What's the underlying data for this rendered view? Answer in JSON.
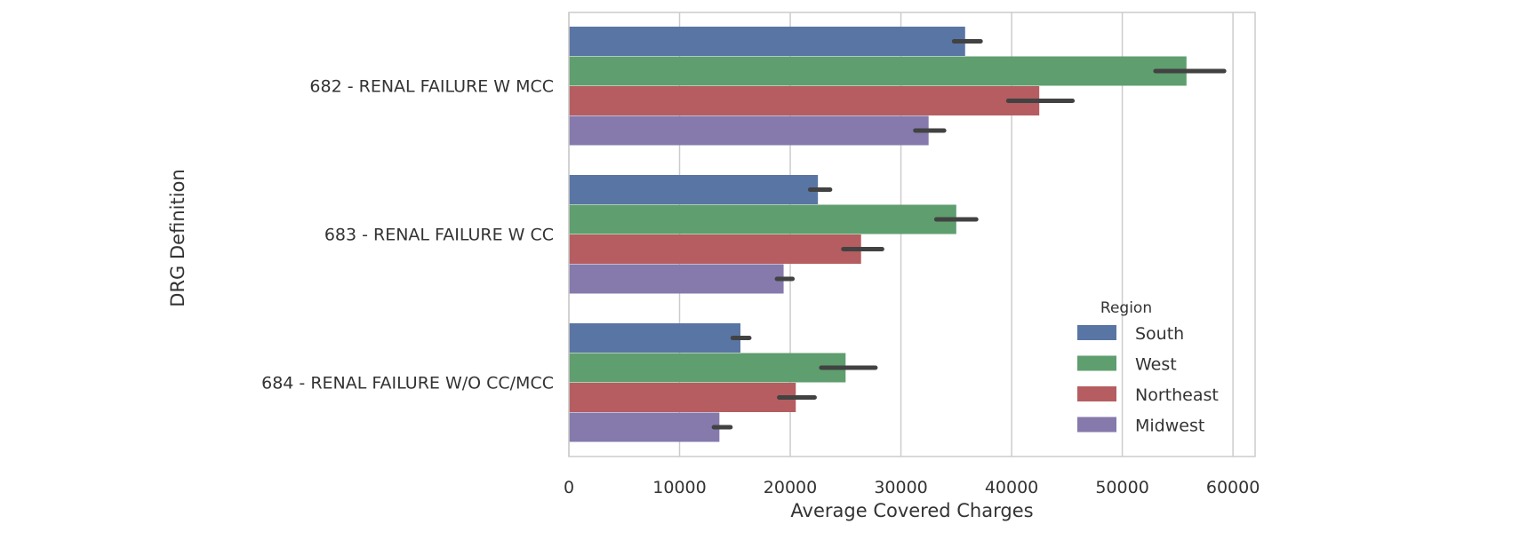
{
  "chart_data": {
    "type": "bar",
    "orientation": "horizontal",
    "xlabel": "Average Covered Charges",
    "ylabel": "DRG Definition",
    "xlim": [
      0,
      62000
    ],
    "xticks": [
      0,
      10000,
      20000,
      30000,
      40000,
      50000,
      60000
    ],
    "xtick_labels": [
      "0",
      "10000",
      "20000",
      "30000",
      "40000",
      "50000",
      "60000"
    ],
    "grid": "vertical",
    "categories": [
      "682 - RENAL FAILURE W MCC",
      "683 - RENAL FAILURE W CC",
      "684 - RENAL FAILURE W/O CC/MCC"
    ],
    "legend": {
      "title": "Region",
      "placement": "lower-right"
    },
    "series": [
      {
        "name": "South",
        "color": "#5975a4",
        "values": [
          35800,
          22500,
          15500
        ],
        "ci_low": [
          34800,
          21800,
          14800
        ],
        "ci_high": [
          37200,
          23600,
          16300
        ]
      },
      {
        "name": "West",
        "color": "#5f9e6e",
        "values": [
          55800,
          35000,
          25000
        ],
        "ci_low": [
          53000,
          33200,
          22800
        ],
        "ci_high": [
          59200,
          36800,
          27700
        ]
      },
      {
        "name": "Northeast",
        "color": "#b55d60",
        "values": [
          42500,
          26400,
          20500
        ],
        "ci_low": [
          39700,
          24800,
          19000
        ],
        "ci_high": [
          45500,
          28300,
          22200
        ]
      },
      {
        "name": "Midwest",
        "color": "#857aab",
        "values": [
          32500,
          19400,
          13600
        ],
        "ci_low": [
          31300,
          18800,
          13100
        ],
        "ci_high": [
          33900,
          20200,
          14600
        ]
      }
    ]
  }
}
